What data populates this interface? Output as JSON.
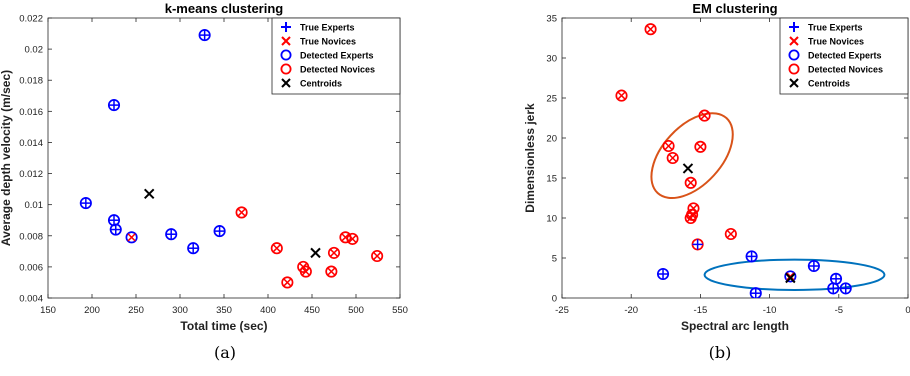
{
  "chart_data": [
    {
      "type": "scatter",
      "title": "k-means clustering",
      "xlabel": "Total time (sec)",
      "ylabel": "Average depth velocity (m/sec)",
      "xlim": [
        150,
        550
      ],
      "ylim": [
        0.004,
        0.022
      ],
      "xticks": [
        "150",
        "200",
        "250",
        "300",
        "350",
        "400",
        "450",
        "500",
        "550"
      ],
      "yticks": [
        "0.004",
        "0.006",
        "0.008",
        "0.01",
        "0.012",
        "0.014",
        "0.016",
        "0.018",
        "0.02",
        "0.022"
      ],
      "caption": "(a)",
      "legend_position": "top-right",
      "legend": [
        "True Experts",
        "True Novices",
        "Detected Experts",
        "Detected Novices",
        "Centroids"
      ],
      "series": [
        {
          "name": "Expert (true + detected)",
          "marker": "plus-in-circle",
          "color": "#0000ff",
          "points": [
            [
              193,
              0.0101
            ],
            [
              225,
              0.0164
            ],
            [
              225,
              0.009
            ],
            [
              227,
              0.0084
            ],
            [
              290,
              0.0081
            ],
            [
              328,
              0.0209
            ],
            [
              345,
              0.0083
            ],
            [
              315,
              0.0072
            ]
          ]
        },
        {
          "name": "Novice detected as Expert",
          "marker": "x-in-blue-circle",
          "points": [
            [
              245,
              0.0079
            ]
          ]
        },
        {
          "name": "Novice (true + detected)",
          "marker": "x-in-circle",
          "color": "#ff0000",
          "points": [
            [
              370,
              0.0095
            ],
            [
              410,
              0.0072
            ],
            [
              422,
              0.005
            ],
            [
              440,
              0.006
            ],
            [
              443,
              0.0057
            ],
            [
              472,
              0.0057
            ],
            [
              475,
              0.0069
            ],
            [
              488,
              0.0079
            ],
            [
              496,
              0.0078
            ],
            [
              524,
              0.0067
            ]
          ]
        },
        {
          "name": "Centroids",
          "marker": "x",
          "color": "#000000",
          "points": [
            [
              265,
              0.0107
            ],
            [
              454,
              0.0069
            ]
          ]
        }
      ]
    },
    {
      "type": "scatter",
      "title": "EM clustering",
      "xlabel": "Spectral arc length",
      "ylabel": "Dimensionless jerk",
      "xlim": [
        -25,
        0
      ],
      "ylim": [
        0,
        35
      ],
      "xticks": [
        "-25",
        "-20",
        "-15",
        "-10",
        "-5",
        "0"
      ],
      "yticks": [
        "0",
        "5",
        "10",
        "15",
        "20",
        "25",
        "30",
        "35"
      ],
      "caption": "(b)",
      "legend_position": "top-right",
      "legend": [
        "True Experts",
        "True Novices",
        "Detected Experts",
        "Detected Novices",
        "Centroids"
      ],
      "series": [
        {
          "name": "Expert (true + detected)",
          "marker": "plus-in-circle",
          "color": "#0000ff",
          "points": [
            [
              -17.7,
              3.0
            ],
            [
              -11.3,
              5.2
            ],
            [
              -11.0,
              0.6
            ],
            [
              -6.8,
              4.0
            ],
            [
              -5.2,
              2.4
            ],
            [
              -5.4,
              1.2
            ],
            [
              -4.5,
              1.2
            ]
          ]
        },
        {
          "name": "Expert detected as Novice",
          "marker": "plus-in-red-circle",
          "points": [
            [
              -15.2,
              6.7
            ]
          ]
        },
        {
          "name": "Novice (true + detected)",
          "marker": "x-in-circle",
          "color": "#ff0000",
          "points": [
            [
              -18.6,
              33.6
            ],
            [
              -20.7,
              25.3
            ],
            [
              -17.3,
              19.0
            ],
            [
              -17.0,
              17.5
            ],
            [
              -14.7,
              22.8
            ],
            [
              -15.0,
              18.9
            ],
            [
              -15.7,
              14.4
            ],
            [
              -15.5,
              11.2
            ],
            [
              -15.6,
              10.4
            ],
            [
              -15.7,
              10.0
            ],
            [
              -12.8,
              8.0
            ]
          ]
        },
        {
          "name": "Novice detected as Expert",
          "marker": "x-in-blue-circle",
          "points": [
            [
              -8.5,
              2.7
            ]
          ]
        },
        {
          "name": "Centroids",
          "marker": "x",
          "color": "#000000",
          "points": [
            [
              -15.9,
              16.2
            ],
            [
              -8.5,
              2.5
            ]
          ]
        }
      ],
      "ellipses": [
        {
          "color": "#d95319",
          "center": [
            -15.6,
            17.8
          ],
          "rx": 5.3,
          "ry": 2.3,
          "angle_deg": 62
        },
        {
          "color": "#0072bd",
          "center": [
            -8.2,
            2.9
          ],
          "rx": 6.5,
          "ry": 1.9,
          "angle_deg": 0
        }
      ]
    }
  ]
}
